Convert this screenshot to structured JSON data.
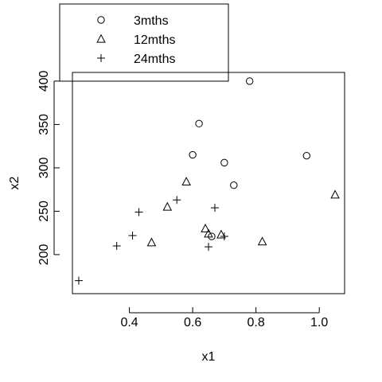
{
  "chart_data": {
    "type": "scatter",
    "title": "",
    "xlabel": "x1",
    "ylabel": "x2",
    "xlim": [
      0.22,
      1.08
    ],
    "ylim": [
      155,
      410
    ],
    "x_ticks": [
      0.4,
      0.6,
      0.8,
      1.0
    ],
    "x_tick_labels": [
      "0.4",
      "0.6",
      "0.8",
      "1.0"
    ],
    "y_ticks": [
      200,
      250,
      300,
      350,
      400
    ],
    "y_tick_labels": [
      "200",
      "250",
      "300",
      "350",
      "400"
    ],
    "grid": false,
    "legend_position": "top-left",
    "series": [
      {
        "name": "3mths",
        "marker": "circle",
        "points": [
          {
            "x": 0.78,
            "y": 400
          },
          {
            "x": 0.62,
            "y": 351
          },
          {
            "x": 0.6,
            "y": 315
          },
          {
            "x": 0.7,
            "y": 306
          },
          {
            "x": 0.73,
            "y": 280
          },
          {
            "x": 0.96,
            "y": 314
          },
          {
            "x": 0.66,
            "y": 221
          }
        ]
      },
      {
        "name": "12mths",
        "marker": "triangle",
        "points": [
          {
            "x": 0.58,
            "y": 284
          },
          {
            "x": 0.52,
            "y": 255
          },
          {
            "x": 0.47,
            "y": 214
          },
          {
            "x": 0.64,
            "y": 230
          },
          {
            "x": 0.65,
            "y": 224
          },
          {
            "x": 0.69,
            "y": 223
          },
          {
            "x": 0.82,
            "y": 215
          },
          {
            "x": 1.05,
            "y": 269
          }
        ]
      },
      {
        "name": "24mths",
        "marker": "plus",
        "points": [
          {
            "x": 0.24,
            "y": 170
          },
          {
            "x": 0.36,
            "y": 210
          },
          {
            "x": 0.41,
            "y": 222
          },
          {
            "x": 0.43,
            "y": 249
          },
          {
            "x": 0.55,
            "y": 263
          },
          {
            "x": 0.67,
            "y": 254
          },
          {
            "x": 0.7,
            "y": 221
          },
          {
            "x": 0.65,
            "y": 209
          }
        ]
      }
    ]
  }
}
